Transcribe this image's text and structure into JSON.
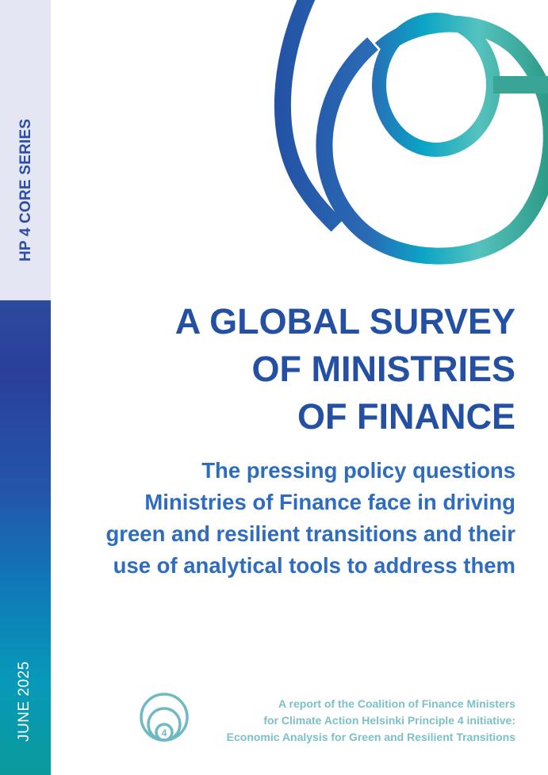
{
  "sidebar": {
    "series": "HP 4 CORE SERIES",
    "date": "JUNE 2025"
  },
  "title": {
    "lines": [
      "A GLOBAL SURVEY",
      "OF MINISTRIES",
      "OF FINANCE"
    ]
  },
  "subtitle": {
    "lines": [
      "The pressing policy questions",
      "Ministries of Finance face in driving",
      "green and resilient transitions and their",
      "use of analytical tools to address them"
    ]
  },
  "footer": {
    "badge_number": "4",
    "lines": [
      "A report of the Coalition of Finance Ministers",
      "for Climate Action Helsinki Principle 4 initiative:",
      "Economic Analysis for Green and Resilient Transitions"
    ]
  },
  "colors": {
    "title": "#2450a4",
    "subtitle": "#2e6cc0",
    "footer": "#7cc0c8",
    "strip_top": "#e5e6f4"
  }
}
